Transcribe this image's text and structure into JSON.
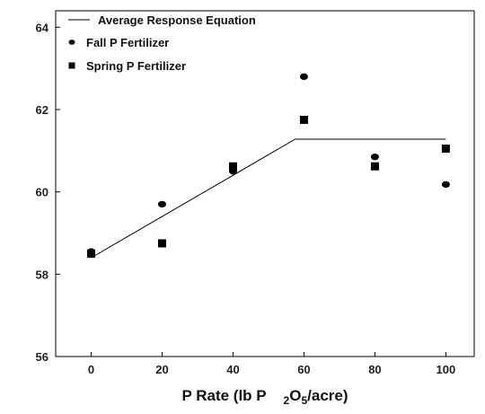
{
  "chart_data": {
    "type": "scatter",
    "title": "",
    "xlabel_parts": [
      "P Rate (lb P",
      "2",
      "O",
      "5",
      "/acre)"
    ],
    "ylabel": "",
    "xlim": [
      -10,
      108
    ],
    "ylim": [
      56,
      64.4
    ],
    "xticks": [
      0,
      20,
      40,
      60,
      80,
      100
    ],
    "yticks": [
      56,
      58,
      60,
      62,
      64
    ],
    "grid": false,
    "legend_position": "top-left",
    "series": [
      {
        "name": "Fall P Fertilizer",
        "marker": "circle",
        "x": [
          0,
          20,
          40,
          60,
          80,
          100
        ],
        "y": [
          58.55,
          59.7,
          60.5,
          62.8,
          60.85,
          60.18
        ]
      },
      {
        "name": "Spring P Fertilizer",
        "marker": "square",
        "x": [
          0,
          20,
          40,
          60,
          80,
          100
        ],
        "y": [
          58.5,
          58.75,
          60.62,
          61.75,
          60.62,
          61.05
        ]
      }
    ],
    "lines": [
      {
        "name": "Average Response Equation",
        "x": [
          0,
          57.5,
          100
        ],
        "y": [
          58.4,
          61.28,
          61.28
        ]
      }
    ],
    "colors": {
      "markers": "#000000",
      "line": "#000000",
      "axes": "#000000"
    }
  }
}
